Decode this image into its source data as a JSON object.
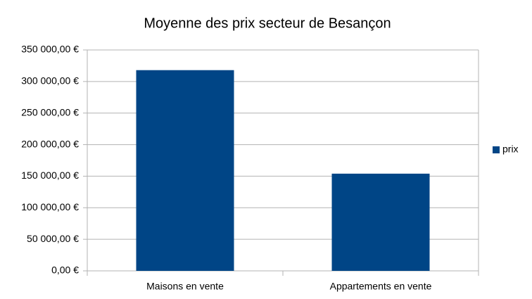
{
  "chart_data": {
    "type": "bar",
    "title": "Moyenne des prix secteur de Besançon",
    "categories": [
      "Maisons en vente",
      "Appartements en vente"
    ],
    "series": [
      {
        "name": "prix",
        "color": "#004586",
        "values": [
          318000,
          154000
        ]
      }
    ],
    "ylim": [
      0,
      350000
    ],
    "yticks": [
      {
        "value": 0,
        "label": "0,00 €"
      },
      {
        "value": 50000,
        "label": "50 000,00 €"
      },
      {
        "value": 100000,
        "label": "100 000,00 €"
      },
      {
        "value": 150000,
        "label": "150 000,00 €"
      },
      {
        "value": 200000,
        "label": "200 000,00 €"
      },
      {
        "value": 250000,
        "label": "250 000,00 €"
      },
      {
        "value": 300000,
        "label": "300 000,00 €"
      },
      {
        "value": 350000,
        "label": "350 000,00 €"
      }
    ],
    "grid": true,
    "legend": "right"
  }
}
